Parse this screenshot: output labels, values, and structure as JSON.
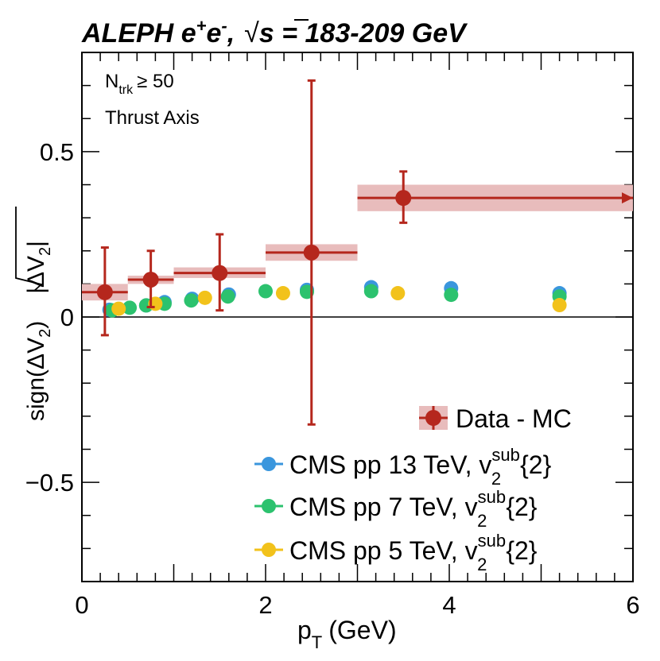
{
  "chart_data": {
    "type": "scatter",
    "title": "ALEPH e+e-, √s = 183-209 GeV",
    "title_parts": {
      "experiment": "ALEPH",
      "beam": "e",
      "plus": "+",
      "minus": "-",
      "comma": ",",
      "sqrt": "√",
      "s": "s",
      "energy": "= 183-209 GeV"
    },
    "annotations": {
      "ntrk_base": "N",
      "ntrk_sub": "trk",
      "ntrk_rest": "≥ 50",
      "axis_label": "Thrust Axis"
    },
    "xlabel": {
      "base": "p",
      "sub": "T",
      "rest": "(GeV)"
    },
    "ylabel": {
      "sign": "sign(ΔV",
      "sign_sub": "2",
      "sign_close": ")",
      "root": "|ΔV",
      "root_sub": "2",
      "root_close": "|"
    },
    "xlim": [
      0,
      6
    ],
    "ylim": [
      -0.8,
      0.8
    ],
    "xticks": [
      0,
      2,
      4,
      6
    ],
    "xtick_labels": [
      "0",
      "2",
      "4",
      "6"
    ],
    "yticks": [
      -0.5,
      0,
      0.5
    ],
    "ytick_labels": [
      "−0.5",
      "0",
      "0.5"
    ],
    "grid": false,
    "legend_position": "bottom-right",
    "legend": [
      {
        "key": "data",
        "label": "Data - MC"
      },
      {
        "key": "cms13",
        "label": "CMS pp 13 TeV, v",
        "sup": "sub",
        "sub": "2",
        "tail": "{2}"
      },
      {
        "key": "cms7",
        "label": "CMS pp 7 TeV, v",
        "sup": "sub",
        "sub": "2",
        "tail": "{2}"
      },
      {
        "key": "cms5",
        "label": "CMS pp 5 TeV, v",
        "sup": "sub",
        "sub": "2",
        "tail": "{2}"
      }
    ],
    "series": [
      {
        "name": "Data - MC",
        "key": "data",
        "color": "#b5271d",
        "band_color": "#e8bcbc",
        "points": [
          {
            "x": 0.25,
            "xlo": 0.0,
            "xhi": 0.5,
            "y": 0.075,
            "ylo": -0.055,
            "yhi": 0.21,
            "syslo": 0.05,
            "syshi": 0.1
          },
          {
            "x": 0.75,
            "xlo": 0.5,
            "xhi": 1.0,
            "y": 0.113,
            "ylo": 0.03,
            "yhi": 0.2,
            "syslo": 0.1,
            "syshi": 0.125
          },
          {
            "x": 1.5,
            "xlo": 1.0,
            "xhi": 2.0,
            "y": 0.133,
            "ylo": 0.02,
            "yhi": 0.25,
            "syslo": 0.118,
            "syshi": 0.15
          },
          {
            "x": 2.5,
            "xlo": 2.0,
            "xhi": 3.0,
            "y": 0.195,
            "ylo": -0.325,
            "yhi": 0.715,
            "syslo": 0.17,
            "syshi": 0.22
          },
          {
            "x": 3.5,
            "xlo": 3.0,
            "xhi": 6.0,
            "y": 0.36,
            "ylo": 0.285,
            "yhi": 0.44,
            "syslo": 0.32,
            "syshi": 0.4,
            "arrow": true
          }
        ]
      },
      {
        "name": "CMS pp 13 TeV",
        "key": "cms13",
        "color": "#3a96dd",
        "points": [
          {
            "x": 0.3,
            "y": 0.022
          },
          {
            "x": 0.7,
            "y": 0.035
          },
          {
            "x": 0.9,
            "y": 0.045
          },
          {
            "x": 1.2,
            "y": 0.055
          },
          {
            "x": 1.6,
            "y": 0.068
          },
          {
            "x": 2.45,
            "y": 0.082
          },
          {
            "x": 3.15,
            "y": 0.09
          },
          {
            "x": 4.02,
            "y": 0.087
          },
          {
            "x": 5.2,
            "y": 0.072
          }
        ]
      },
      {
        "name": "CMS pp 7 TeV",
        "key": "cms7",
        "color": "#2cc26e",
        "points": [
          {
            "x": 0.33,
            "y": 0.02
          },
          {
            "x": 0.52,
            "y": 0.028
          },
          {
            "x": 0.7,
            "y": 0.035
          },
          {
            "x": 0.9,
            "y": 0.04
          },
          {
            "x": 1.19,
            "y": 0.05
          },
          {
            "x": 1.59,
            "y": 0.062
          },
          {
            "x": 2.0,
            "y": 0.078
          },
          {
            "x": 2.45,
            "y": 0.076
          },
          {
            "x": 3.15,
            "y": 0.078
          },
          {
            "x": 4.02,
            "y": 0.067
          },
          {
            "x": 5.2,
            "y": 0.062
          }
        ]
      },
      {
        "name": "CMS pp 5 TeV",
        "key": "cms5",
        "color": "#f2c21b",
        "points": [
          {
            "x": 0.4,
            "y": 0.025
          },
          {
            "x": 0.8,
            "y": 0.04
          },
          {
            "x": 1.34,
            "y": 0.058
          },
          {
            "x": 2.19,
            "y": 0.072
          },
          {
            "x": 3.44,
            "y": 0.072
          },
          {
            "x": 5.2,
            "y": 0.036
          }
        ]
      }
    ]
  }
}
